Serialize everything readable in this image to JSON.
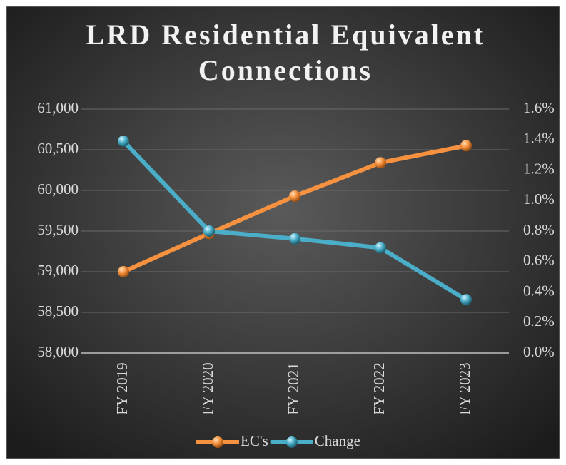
{
  "chart_data": {
    "type": "line",
    "title": "LRD Residential Equivalent Connections",
    "categories": [
      "FY 2019",
      "FY 2020",
      "FY 2021",
      "FY 2022",
      "FY 2023"
    ],
    "series": [
      {
        "name": "EC's",
        "color": "#f5913f",
        "values": [
          59000,
          59470,
          59930,
          60340,
          60550
        ]
      },
      {
        "name": "Change",
        "color": "#4aaec8",
        "axis": "y2",
        "values": [
          1.39,
          0.8,
          0.75,
          0.69,
          0.35
        ]
      }
    ],
    "ylim": [
      58000,
      61000
    ],
    "yticks": [
      {
        "value": 58000,
        "label": "58,000"
      },
      {
        "value": 58500,
        "label": "58,500"
      },
      {
        "value": 59000,
        "label": "59,000"
      },
      {
        "value": 59500,
        "label": "59,500"
      },
      {
        "value": 60000,
        "label": "60,000"
      },
      {
        "value": 60500,
        "label": "60,500"
      },
      {
        "value": 61000,
        "label": "61,000"
      }
    ],
    "y2lim": [
      0,
      1.6
    ],
    "y2ticks": [
      {
        "value": 0,
        "label": "0.0%"
      },
      {
        "value": 0.2,
        "label": "0.2%"
      },
      {
        "value": 0.4,
        "label": "0.4%"
      },
      {
        "value": 0.6,
        "label": "0.6%"
      },
      {
        "value": 0.8,
        "label": "0.8%"
      },
      {
        "value": 1.0,
        "label": "1.0%"
      },
      {
        "value": 1.2,
        "label": "1.2%"
      },
      {
        "value": 1.4,
        "label": "1.4%"
      },
      {
        "value": 1.6,
        "label": "1.6%"
      }
    ],
    "grid": true,
    "legend": "bottom"
  }
}
